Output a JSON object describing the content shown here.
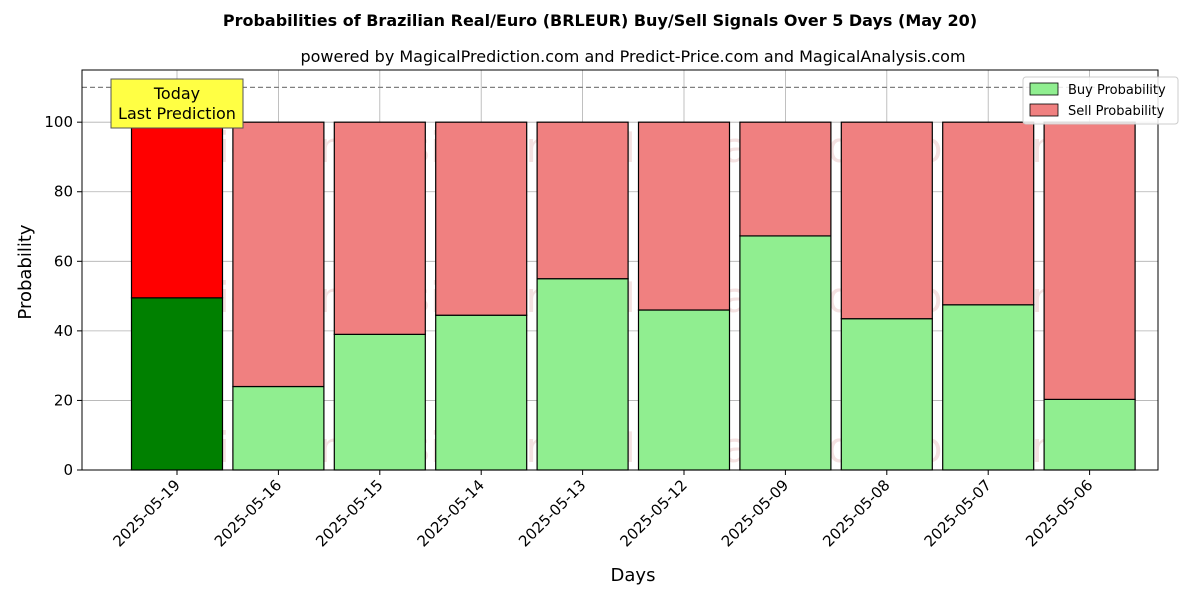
{
  "chart_data": {
    "type": "bar",
    "title": "Probabilities of Brazilian Real/Euro (BRLEUR) Buy/Sell Signals Over 5 Days (May 20)",
    "subtitle": "powered by MagicalPrediction.com and Predict-Price.com and MagicalAnalysis.com",
    "xlabel": "Days",
    "ylabel": "Probability",
    "ylim": [
      0,
      115
    ],
    "yticks": [
      0,
      20,
      40,
      60,
      80,
      100
    ],
    "grid": true,
    "stacked": true,
    "legend_position": "top-right",
    "reference_line": 110,
    "categories": [
      "2025-05-19",
      "2025-05-16",
      "2025-05-15",
      "2025-05-14",
      "2025-05-13",
      "2025-05-12",
      "2025-05-09",
      "2025-05-08",
      "2025-05-07",
      "2025-05-06"
    ],
    "series": [
      {
        "name": "Buy Probability",
        "values": [
          49.5,
          24,
          39,
          44.5,
          55,
          46,
          67.3,
          43.5,
          47.5,
          20.3
        ],
        "color": "#90ee90",
        "highlight_color": "#008000"
      },
      {
        "name": "Sell Probability",
        "values": [
          50.5,
          76,
          61,
          55.5,
          45,
          54,
          32.7,
          56.5,
          52.5,
          79.7
        ],
        "color": "#f08080",
        "highlight_color": "#ff0000"
      }
    ],
    "annotation": {
      "lines": [
        "Today",
        "Last Prediction"
      ],
      "category_index": 0,
      "background": "#ffff44"
    },
    "watermarks": [
      "MagicalAnalysis.com",
      "MagicalPrediction.com"
    ]
  }
}
